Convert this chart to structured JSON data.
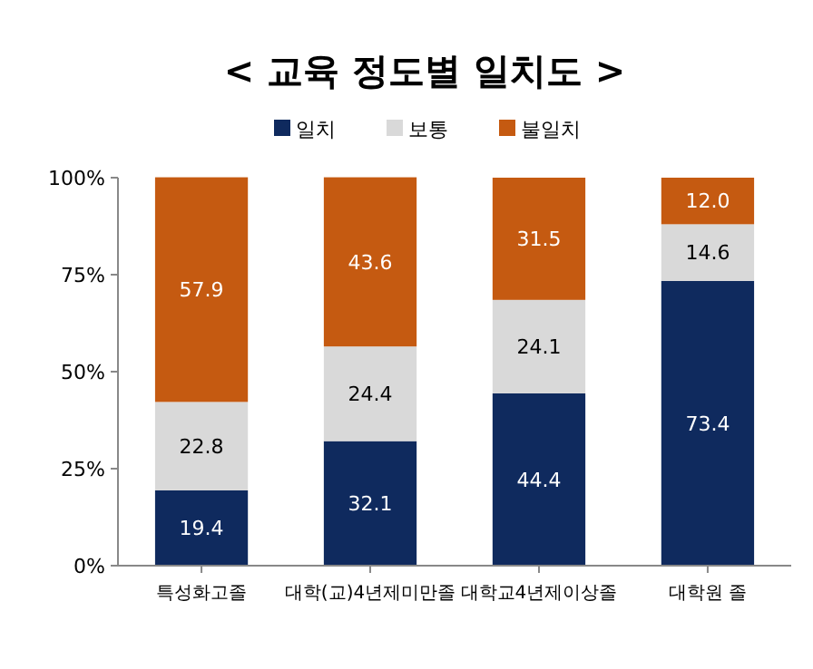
{
  "chart_data": {
    "type": "bar",
    "title": "< 교육 정도별 일치도 >",
    "stacked": true,
    "legend": "top",
    "grid": false,
    "categories": [
      "특성화고졸",
      "대학(교)4년제미만졸",
      "대학교4년제이상졸",
      "대학원 졸"
    ],
    "series": [
      {
        "name": "일치",
        "color": "#0f2a5e",
        "values": [
          19.4,
          32.1,
          44.4,
          73.4
        ],
        "value_labels": [
          "19.4",
          "32.1",
          "44.4",
          "73.4"
        ]
      },
      {
        "name": "보통",
        "color": "#d9d9d9",
        "values": [
          22.8,
          24.4,
          24.1,
          14.6
        ],
        "value_labels": [
          "22.8",
          "24.4",
          "24.1",
          "14.6"
        ]
      },
      {
        "name": "불일치",
        "color": "#c55a11",
        "values": [
          57.9,
          43.6,
          31.5,
          12.0
        ],
        "value_labels": [
          "57.9",
          "43.6",
          "31.5",
          "12.0"
        ]
      }
    ],
    "ylim": [
      0,
      100
    ],
    "yticks": [
      {
        "value": 0,
        "label": "0%"
      },
      {
        "value": 25,
        "label": "25%"
      },
      {
        "value": 50,
        "label": "50%"
      },
      {
        "value": 75,
        "label": "75%"
      },
      {
        "value": 100,
        "label": "100%"
      }
    ]
  }
}
